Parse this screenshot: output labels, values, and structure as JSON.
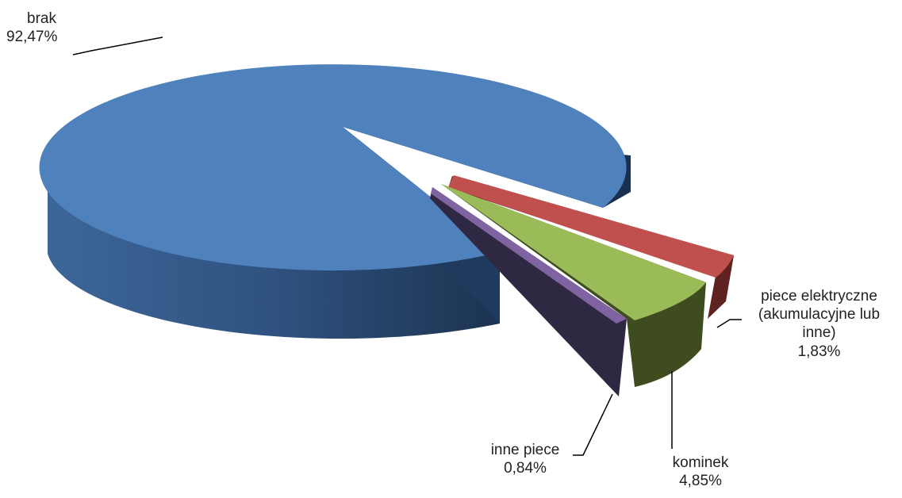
{
  "chart_data": {
    "type": "pie",
    "style": "3d-exploded",
    "legend": "none",
    "slices": [
      {
        "name": "brak",
        "value": 92.47,
        "label": "92,47%",
        "color": "#4f81bd"
      },
      {
        "name": "piece elektryczne (akumulacyjne lub inne)",
        "value": 1.83,
        "label": "1,83%",
        "color": "#c0504d"
      },
      {
        "name": "kominek",
        "value": 4.85,
        "label": "4,85%",
        "color": "#9bbb59"
      },
      {
        "name": "inne piece",
        "value": 0.84,
        "label": "0,84%",
        "color": "#8064a2"
      }
    ]
  },
  "labels": {
    "brak": {
      "name": "brak",
      "value": "92,47%"
    },
    "piece": {
      "line1": "piece elektryczne",
      "line2": "(akumulacyjne lub",
      "line3": "inne)",
      "value": "1,83%"
    },
    "kominek": {
      "name": "kominek",
      "value": "4,85%"
    },
    "inne": {
      "name": "inne piece",
      "value": "0,84%"
    }
  }
}
